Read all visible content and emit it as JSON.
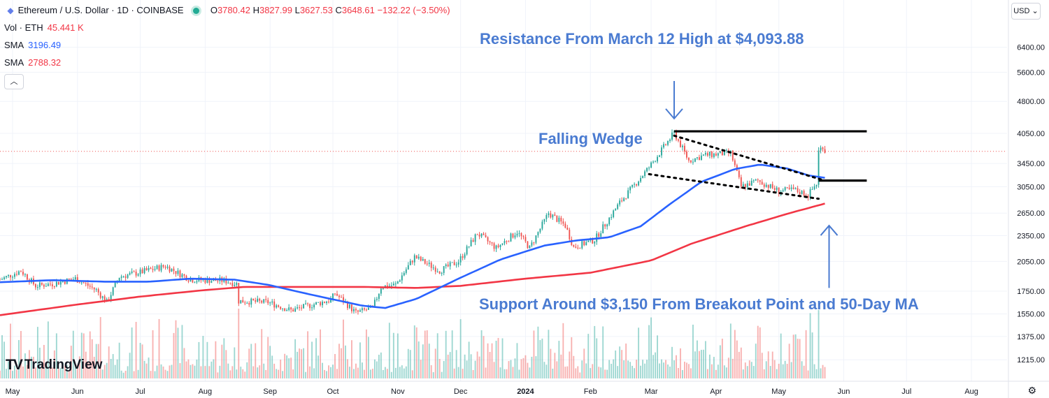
{
  "header": {
    "symbol": "Ethereum / U.S. Dollar · 1D · COINBASE",
    "o_label": "O",
    "o_val": "3780.42",
    "h_label": "H",
    "h_val": "3827.99",
    "l_label": "L",
    "l_val": "3627.53",
    "c_label": "C",
    "c_val": "3648.61",
    "change": "−132.22 (−3.50%)"
  },
  "indicators": [
    {
      "name": "Vol · ETH",
      "value": "45.441 K",
      "color": "#f23645"
    },
    {
      "name": "SMA",
      "value": "3196.49",
      "color": "#2962ff"
    },
    {
      "name": "SMA",
      "value": "2788.32",
      "color": "#f23645"
    }
  ],
  "currency": "USD",
  "branding": "TradingView",
  "colors": {
    "up": "#26a69a",
    "down": "#ef5350",
    "sma50": "#2962ff",
    "sma200": "#f23645",
    "annotation": "#4a7bd1"
  },
  "chart_data": {
    "type": "candlestick",
    "title": "Ethereum / U.S. Dollar · 1D · COINBASE",
    "y_scale": "log",
    "ylim": [
      1100,
      7200
    ],
    "y_ticks": [
      1215,
      1375,
      1550,
      1750,
      2050,
      2350,
      2650,
      3050,
      3450,
      4050,
      4800,
      5600,
      6400
    ],
    "y_tick_labels": [
      "1215.00",
      "1375.00",
      "1550.00",
      "1750.00",
      "2050.00",
      "2350.00",
      "2650.00",
      "3050.00",
      "3450.00",
      "4050.00",
      "4800.00",
      "5600.00",
      "6400.00"
    ],
    "x_range": [
      "2023-04-25",
      "2024-08-18"
    ],
    "x_ticks": [
      {
        "date": "2023-05-01",
        "label": "May"
      },
      {
        "date": "2023-06-01",
        "label": "Jun"
      },
      {
        "date": "2023-07-01",
        "label": "Jul"
      },
      {
        "date": "2023-08-01",
        "label": "Aug"
      },
      {
        "date": "2023-09-01",
        "label": "Sep"
      },
      {
        "date": "2023-10-01",
        "label": "Oct"
      },
      {
        "date": "2023-11-01",
        "label": "Nov"
      },
      {
        "date": "2023-12-01",
        "label": "Dec"
      },
      {
        "date": "2024-01-01",
        "label": "2024"
      },
      {
        "date": "2024-02-01",
        "label": "Feb"
      },
      {
        "date": "2024-03-01",
        "label": "Mar"
      },
      {
        "date": "2024-04-01",
        "label": "Apr"
      },
      {
        "date": "2024-05-01",
        "label": "May"
      },
      {
        "date": "2024-06-01",
        "label": "Jun"
      },
      {
        "date": "2024-07-01",
        "label": "Jul"
      },
      {
        "date": "2024-08-01",
        "label": "Aug"
      }
    ],
    "price_path": [
      [
        "2023-04-25",
        1860
      ],
      [
        "2023-05-05",
        1950
      ],
      [
        "2023-05-12",
        1800
      ],
      [
        "2023-05-20",
        1820
      ],
      [
        "2023-05-31",
        1870
      ],
      [
        "2023-06-10",
        1760
      ],
      [
        "2023-06-15",
        1650
      ],
      [
        "2023-06-21",
        1890
      ],
      [
        "2023-06-30",
        1930
      ],
      [
        "2023-07-13",
        2000
      ],
      [
        "2023-07-25",
        1860
      ],
      [
        "2023-08-10",
        1850
      ],
      [
        "2023-08-16",
        1820
      ],
      [
        "2023-08-17",
        1660
      ],
      [
        "2023-08-31",
        1650
      ],
      [
        "2023-09-11",
        1580
      ],
      [
        "2023-09-30",
        1670
      ],
      [
        "2023-10-02",
        1730
      ],
      [
        "2023-10-12",
        1560
      ],
      [
        "2023-10-20",
        1600
      ],
      [
        "2023-10-24",
        1790
      ],
      [
        "2023-10-31",
        1810
      ],
      [
        "2023-11-09",
        2100
      ],
      [
        "2023-11-21",
        1950
      ],
      [
        "2023-11-30",
        2050
      ],
      [
        "2023-12-09",
        2380
      ],
      [
        "2023-12-18",
        2200
      ],
      [
        "2023-12-28",
        2400
      ],
      [
        "2024-01-03",
        2200
      ],
      [
        "2024-01-12",
        2650
      ],
      [
        "2024-01-20",
        2480
      ],
      [
        "2024-01-24",
        2210
      ],
      [
        "2024-02-03",
        2300
      ],
      [
        "2024-02-15",
        2800
      ],
      [
        "2024-02-29",
        3380
      ],
      [
        "2024-03-12",
        4060
      ],
      [
        "2024-03-19",
        3500
      ],
      [
        "2024-03-26",
        3600
      ],
      [
        "2024-04-08",
        3650
      ],
      [
        "2024-04-13",
        3050
      ],
      [
        "2024-04-21",
        3150
      ],
      [
        "2024-05-01",
        2980
      ],
      [
        "2024-05-08",
        3000
      ],
      [
        "2024-05-15",
        2920
      ],
      [
        "2024-05-19",
        3100
      ],
      [
        "2024-05-20",
        3680
      ],
      [
        "2024-05-22",
        3790
      ],
      [
        "2024-05-23",
        3680
      ]
    ],
    "sma50_path": [
      [
        "2023-04-25",
        1835
      ],
      [
        "2023-05-20",
        1855
      ],
      [
        "2023-06-15",
        1840
      ],
      [
        "2023-07-05",
        1840
      ],
      [
        "2023-07-25",
        1870
      ],
      [
        "2023-08-15",
        1860
      ],
      [
        "2023-08-31",
        1810
      ],
      [
        "2023-09-20",
        1720
      ],
      [
        "2023-10-15",
        1620
      ],
      [
        "2023-10-26",
        1600
      ],
      [
        "2023-11-10",
        1680
      ],
      [
        "2023-11-30",
        1870
      ],
      [
        "2023-12-20",
        2070
      ],
      [
        "2024-01-10",
        2230
      ],
      [
        "2024-01-25",
        2290
      ],
      [
        "2024-02-10",
        2330
      ],
      [
        "2024-02-25",
        2470
      ],
      [
        "2024-03-10",
        2780
      ],
      [
        "2024-03-25",
        3130
      ],
      [
        "2024-04-10",
        3350
      ],
      [
        "2024-04-22",
        3430
      ],
      [
        "2024-05-05",
        3360
      ],
      [
        "2024-05-15",
        3240
      ],
      [
        "2024-05-23",
        3196
      ]
    ],
    "sma200_path": [
      [
        "2023-04-25",
        1540
      ],
      [
        "2023-06-01",
        1630
      ],
      [
        "2023-07-01",
        1700
      ],
      [
        "2023-08-01",
        1760
      ],
      [
        "2023-08-20",
        1790
      ],
      [
        "2023-09-15",
        1790
      ],
      [
        "2023-10-15",
        1790
      ],
      [
        "2023-11-10",
        1780
      ],
      [
        "2023-12-01",
        1800
      ],
      [
        "2024-01-01",
        1870
      ],
      [
        "2024-02-01",
        1930
      ],
      [
        "2024-03-01",
        2060
      ],
      [
        "2024-03-20",
        2250
      ],
      [
        "2024-04-15",
        2470
      ],
      [
        "2024-05-05",
        2640
      ],
      [
        "2024-05-23",
        2788
      ]
    ],
    "annotations": [
      {
        "text": "Resistance From March 12 High at $4,093.88"
      },
      {
        "text": "Falling Wedge"
      },
      {
        "text": "Support Around $3,150 From Breakout Point and 50-Day MA"
      }
    ],
    "levels": [
      {
        "name": "resistance",
        "value": 4093.88,
        "from": "2024-03-12",
        "to": "2024-06-12"
      },
      {
        "name": "support",
        "value": 3150,
        "from": "2024-05-20",
        "to": "2024-06-12"
      }
    ],
    "wedge": {
      "upper": [
        [
          "2024-03-12",
          4000
        ],
        [
          "2024-05-23",
          3150
        ]
      ],
      "lower": [
        [
          "2024-02-29",
          3260
        ],
        [
          "2024-05-20",
          2860
        ]
      ]
    },
    "arrows": [
      {
        "name": "resistance-arrow",
        "from": [
          "2024-03-12",
          5350
        ],
        "to": [
          "2024-03-12",
          4380
        ]
      },
      {
        "name": "support-arrow",
        "from": [
          "2024-05-25",
          1780
        ],
        "to": [
          "2024-05-25",
          2480
        ]
      }
    ]
  }
}
